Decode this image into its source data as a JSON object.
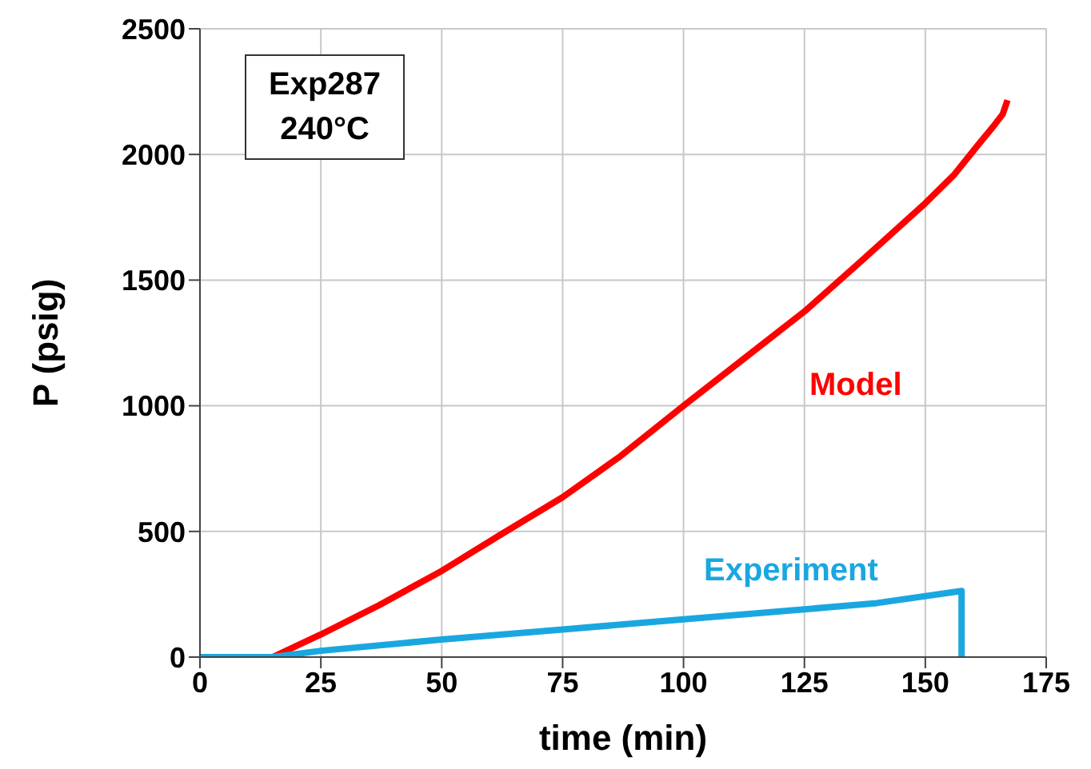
{
  "chart_data": {
    "type": "line",
    "xlabel": "time (min)",
    "ylabel": "P (psig)",
    "annotations": [
      "Exp287",
      "240°C"
    ],
    "series": [
      {
        "name": "Model",
        "color": "#ff0000",
        "x": [
          0,
          15,
          25,
          37,
          50,
          62,
          75,
          87,
          100,
          112,
          125,
          137,
          150,
          156,
          161,
          164,
          166,
          167
        ],
        "values": [
          0,
          0,
          90,
          206,
          343,
          485,
          636,
          800,
          1000,
          1180,
          1375,
          1580,
          1806,
          1920,
          2040,
          2110,
          2160,
          2216
        ]
      },
      {
        "name": "Experiment",
        "color": "#1aa7e0",
        "x": [
          0,
          15,
          25,
          50,
          75,
          100,
          125,
          140,
          157.5,
          157.5
        ],
        "values": [
          0,
          0,
          25,
          70,
          110,
          150,
          190,
          215,
          263,
          0
        ]
      }
    ],
    "xlim": [
      0,
      175
    ],
    "xticks": [
      0,
      25,
      50,
      75,
      100,
      125,
      150,
      175
    ],
    "ylim": [
      0,
      2500
    ],
    "yticks": [
      0,
      500,
      1000,
      1500,
      2000,
      2500
    ],
    "grid": true,
    "legend": false,
    "marker": "none",
    "line_style": "solid"
  }
}
